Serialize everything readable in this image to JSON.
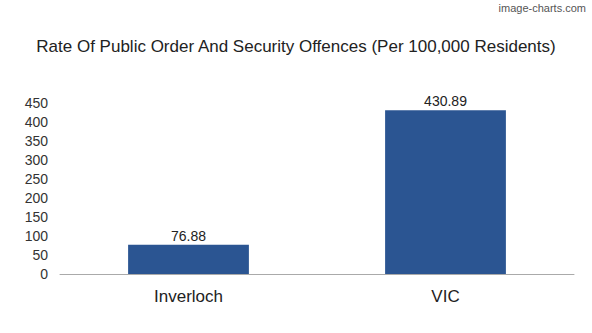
{
  "chart_data": {
    "type": "bar",
    "title": "Rate Of Public Order And Security Offences (Per 100,000 Residents)",
    "annotations": [
      "image-charts.com"
    ],
    "categories": [
      "Inverloch",
      "VIC"
    ],
    "values": [
      76.88,
      430.89
    ],
    "color": "#2b5592",
    "ylim": [
      0,
      450
    ],
    "yticks": [
      0,
      50,
      100,
      150,
      200,
      250,
      300,
      350,
      400,
      450
    ],
    "grid": false,
    "data_labels": true
  }
}
